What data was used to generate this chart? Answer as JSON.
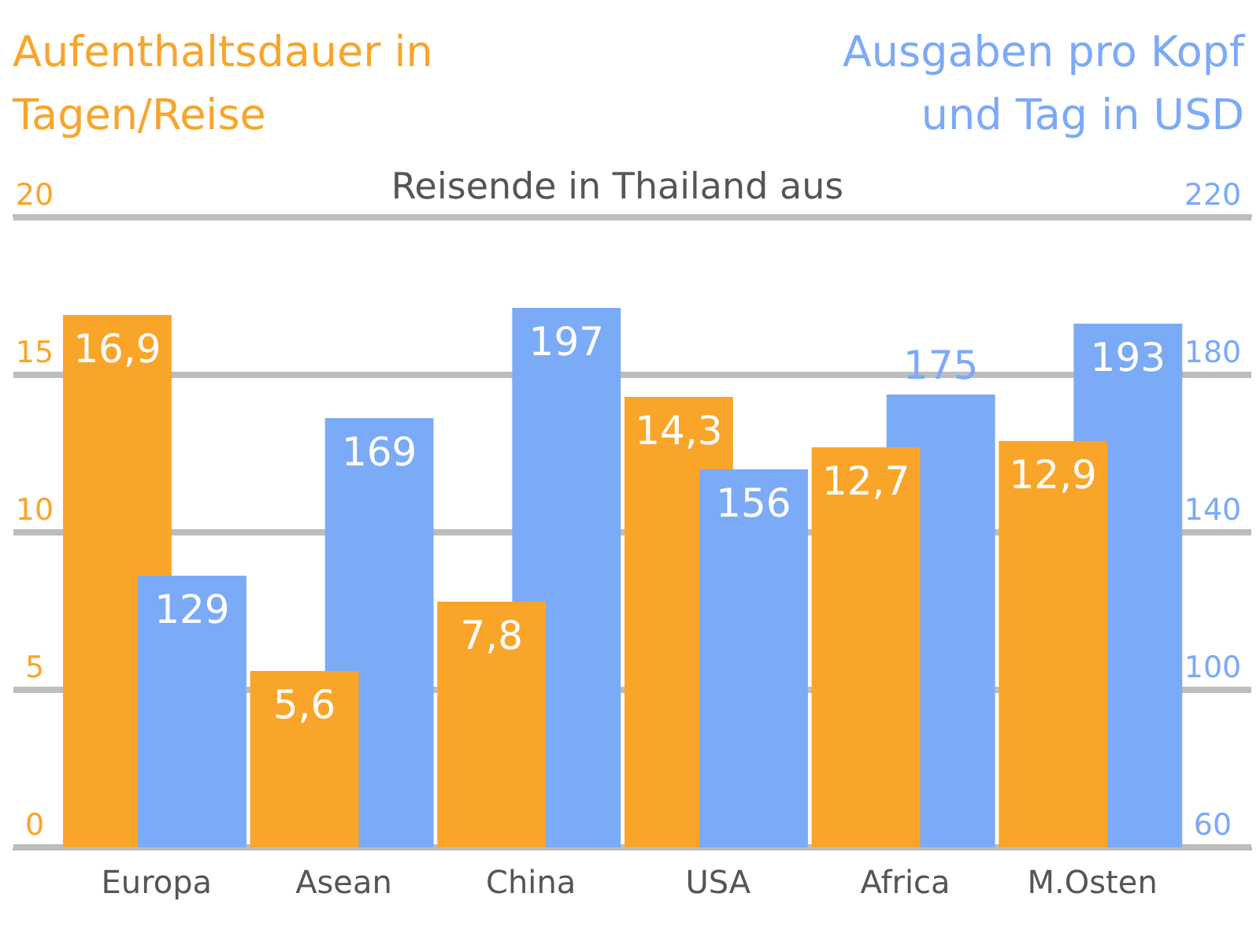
{
  "chart_data": {
    "type": "bar",
    "title": "Reisende in Thailand aus",
    "ylabel": "Aufenthaltsdauer in Tagen/Reise",
    "y2label": "Ausgaben pro Kopf und Tag in USD",
    "categories": [
      "Europa",
      "Asean",
      "China",
      "USA",
      "Africa",
      "M.Osten"
    ],
    "series": [
      {
        "color": "#f9a52a",
        "values": [
          16.9,
          5.6,
          7.8,
          14.3,
          12.7,
          12.9
        ],
        "value_labels": [
          "16,9",
          "5,6",
          "7,8",
          "14,3",
          "12,7",
          "12,9"
        ]
      },
      {
        "color": "#7baaf7",
        "axis": "y2",
        "values": [
          129,
          169,
          197,
          156,
          175,
          193
        ],
        "value_labels": [
          "129",
          "169",
          "197",
          "156",
          "175",
          "193"
        ]
      }
    ],
    "ylim": [
      0,
      20
    ],
    "yticks": [
      0,
      5,
      10,
      15,
      20
    ],
    "y2lim": [
      60,
      220
    ],
    "y2ticks": [
      60,
      100,
      140,
      180,
      220
    ],
    "grid": "y"
  }
}
